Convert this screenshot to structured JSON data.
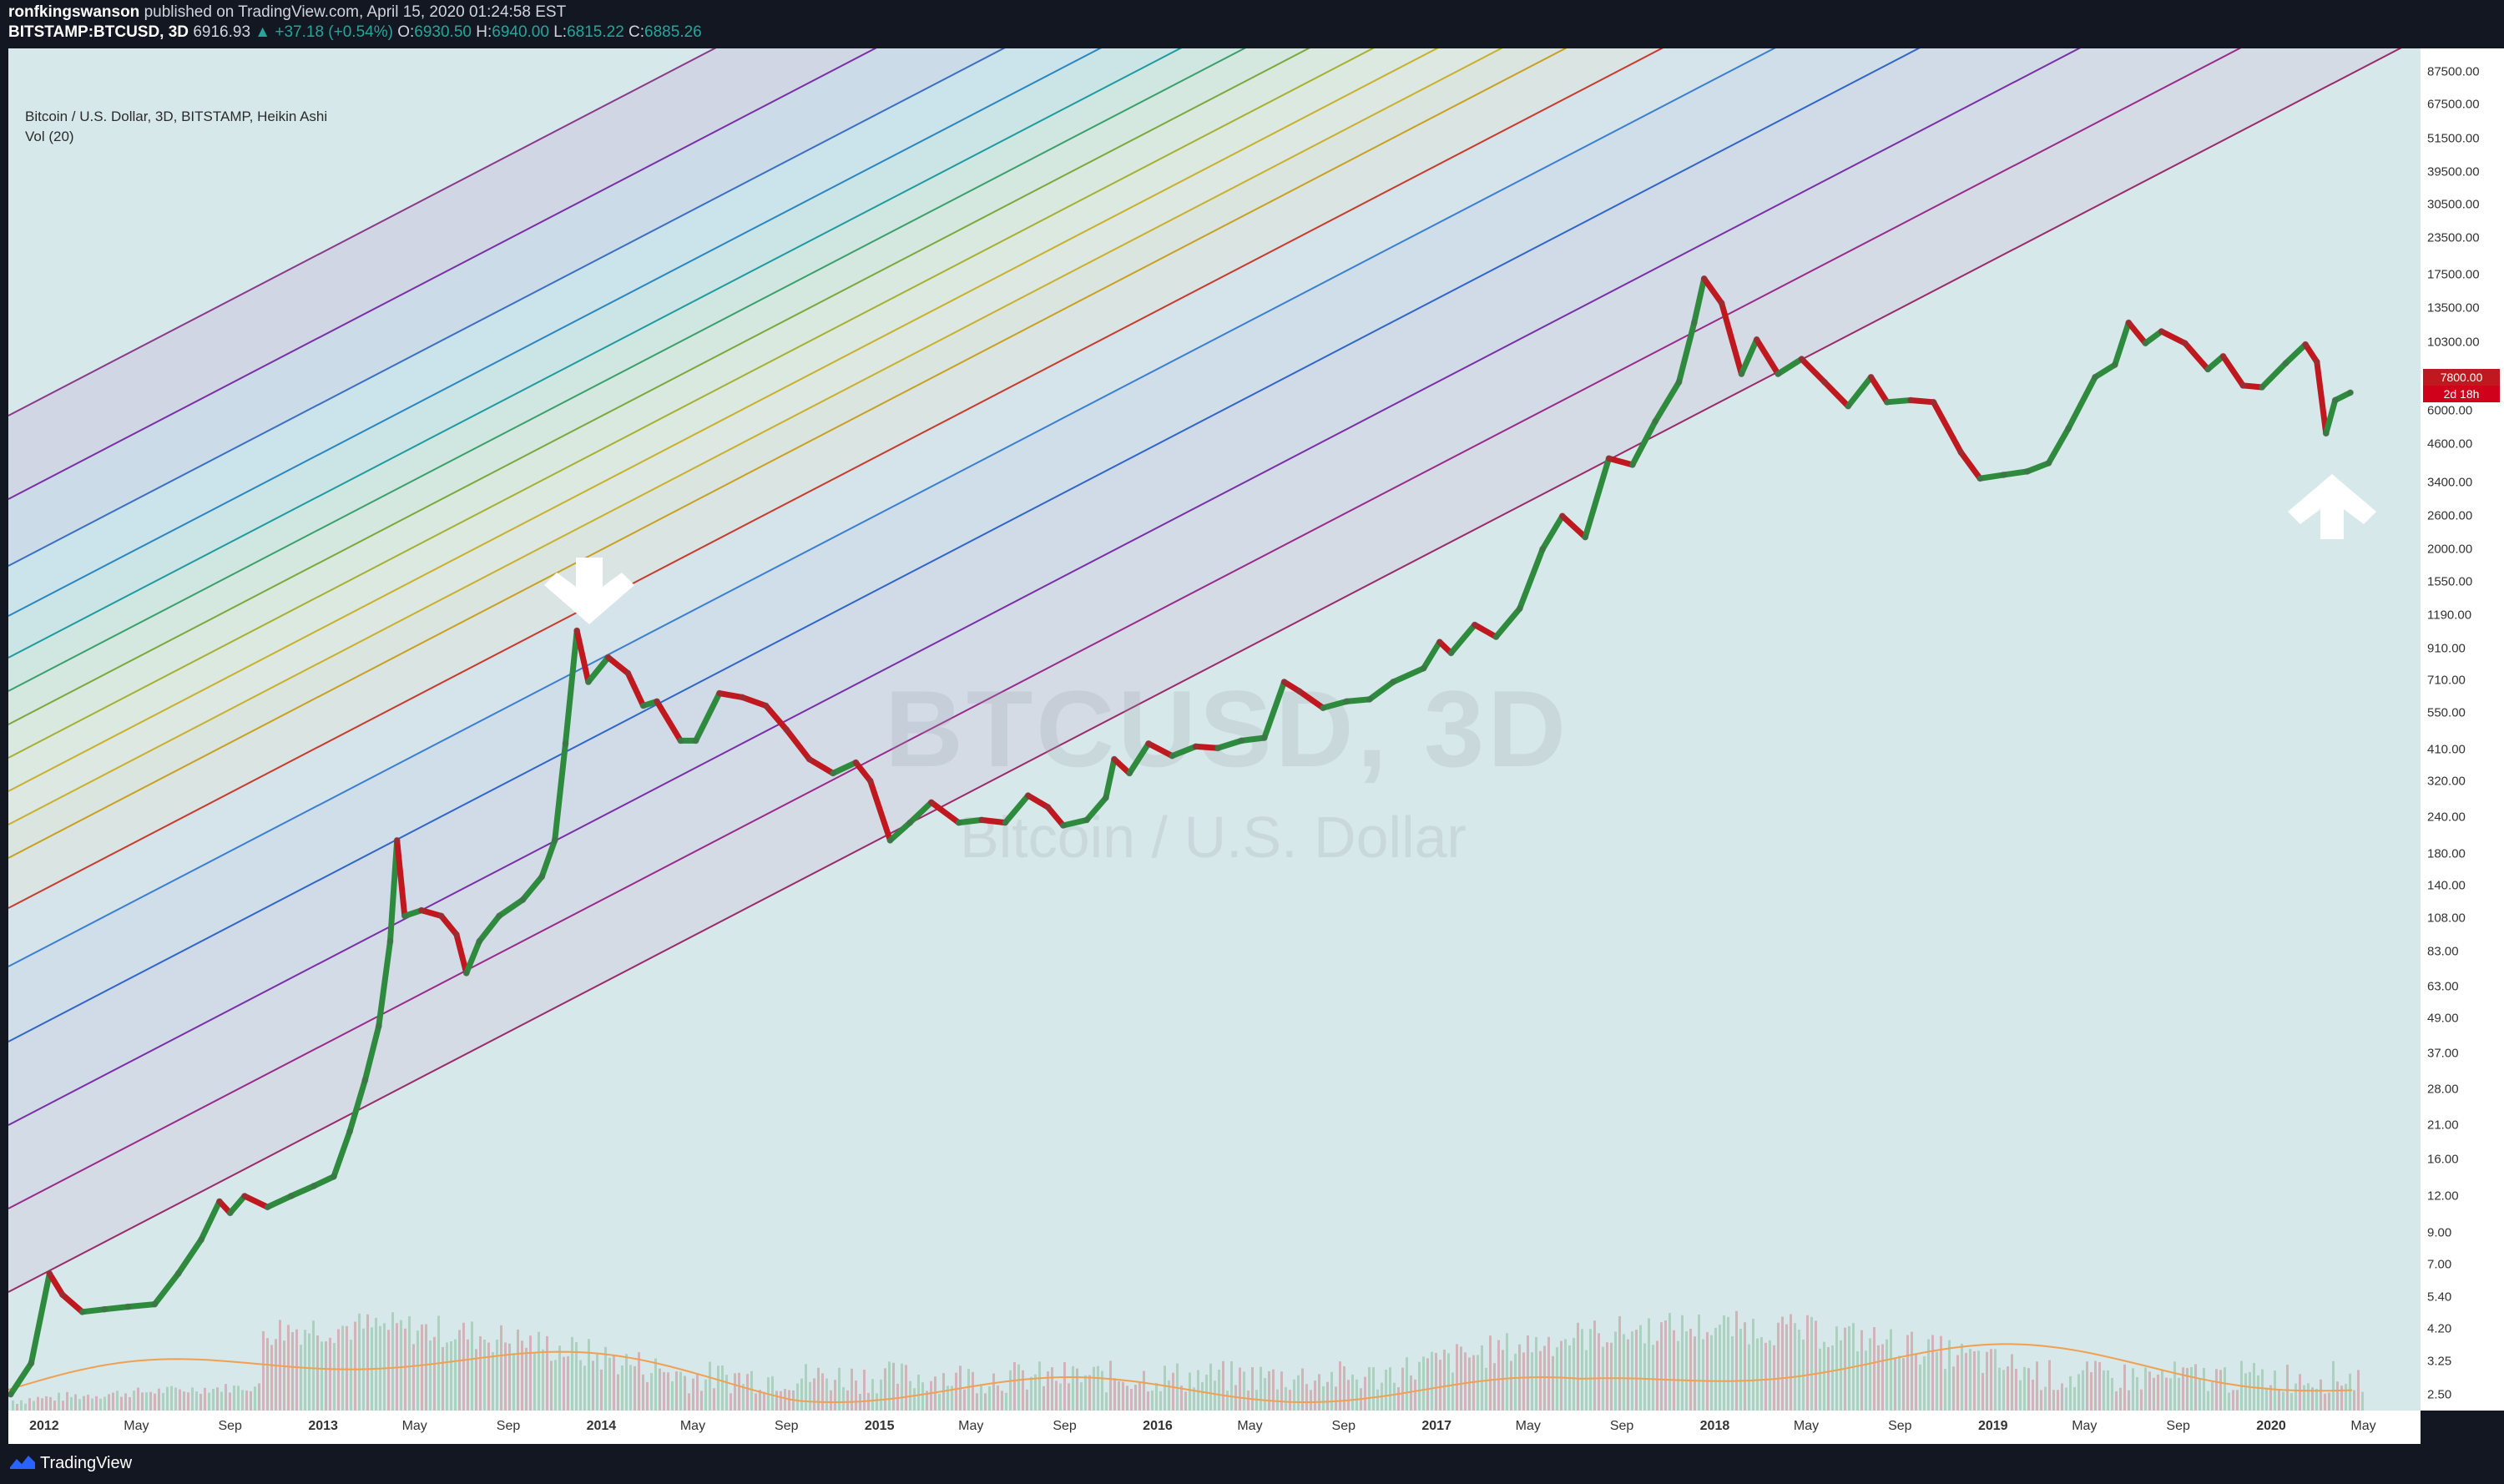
{
  "header": {
    "publisher": "ronfkingswanson",
    "publisher_rest": " published on TradingView.com, April 15, 2020 01:24:58 EST",
    "symbol": "BITSTAMP:BTCUSD, 3D",
    "price": "6916.93",
    "change": "▲ +37.18 (+0.54%)",
    "o_label": "O:",
    "o_val": "6930.50",
    "h_label": "H:",
    "h_val": "6940.00",
    "l_label": "L:",
    "l_val": "6815.22",
    "c_label": "C:",
    "c_val": "6885.26"
  },
  "legend": {
    "title": "Bitcoin / U.S. Dollar, 3D, BITSTAMP, Heikin Ashi",
    "vol": "Vol (20)"
  },
  "watermark": {
    "symbol": "BTCUSD, 3D",
    "name": "Bitcoin / U.S. Dollar"
  },
  "price_tag": {
    "top": "7800.00",
    "bottom": "2d 18h"
  },
  "footer": {
    "brand": "TradingView"
  },
  "colors": {
    "up": "#2e8b3d",
    "down": "#c0181f",
    "background": "#131722",
    "plot": "#d6e8ea"
  },
  "chart_data": {
    "type": "line",
    "title": "Bitcoin / U.S. Dollar, 3D, BITSTAMP, Heikin Ashi",
    "y_scale": "log",
    "ylim": [
      2.2,
      105000
    ],
    "xlim": [
      "2011-11-15",
      "2020-07-15"
    ],
    "y_ticks": [
      "87500.00",
      "67500.00",
      "51500.00",
      "39500.00",
      "30500.00",
      "23500.00",
      "17500.00",
      "13500.00",
      "10300.00",
      "7800.00",
      "6000.00",
      "4600.00",
      "3400.00",
      "2600.00",
      "2000.00",
      "1550.00",
      "1190.00",
      "910.00",
      "710.00",
      "550.00",
      "410.00",
      "320.00",
      "240.00",
      "180.00",
      "140.00",
      "108.00",
      "83.00",
      "63.00",
      "49.00",
      "37.00",
      "28.00",
      "21.00",
      "16.00",
      "12.00",
      "9.00",
      "7.00",
      "5.40",
      "4.20",
      "3.25",
      "2.50"
    ],
    "x_ticks": [
      {
        "label": "2012",
        "date": "2012-01-01",
        "year": true
      },
      {
        "label": "May",
        "date": "2012-05-01"
      },
      {
        "label": "Sep",
        "date": "2012-09-01"
      },
      {
        "label": "2013",
        "date": "2013-01-01",
        "year": true
      },
      {
        "label": "May",
        "date": "2013-05-01"
      },
      {
        "label": "Sep",
        "date": "2013-09-01"
      },
      {
        "label": "2014",
        "date": "2014-01-01",
        "year": true
      },
      {
        "label": "May",
        "date": "2014-05-01"
      },
      {
        "label": "Sep",
        "date": "2014-09-01"
      },
      {
        "label": "2015",
        "date": "2015-01-01",
        "year": true
      },
      {
        "label": "May",
        "date": "2015-05-01"
      },
      {
        "label": "Sep",
        "date": "2015-09-01"
      },
      {
        "label": "2016",
        "date": "2016-01-01",
        "year": true
      },
      {
        "label": "May",
        "date": "2016-05-01"
      },
      {
        "label": "Sep",
        "date": "2016-09-01"
      },
      {
        "label": "2017",
        "date": "2017-01-01",
        "year": true
      },
      {
        "label": "May",
        "date": "2017-05-01"
      },
      {
        "label": "Sep",
        "date": "2017-09-01"
      },
      {
        "label": "2018",
        "date": "2018-01-01",
        "year": true
      },
      {
        "label": "May",
        "date": "2018-05-01"
      },
      {
        "label": "Sep",
        "date": "2018-09-01"
      },
      {
        "label": "2019",
        "date": "2019-01-01",
        "year": true
      },
      {
        "label": "May",
        "date": "2019-05-01"
      },
      {
        "label": "Sep",
        "date": "2019-09-01"
      },
      {
        "label": "2020",
        "date": "2020-01-01",
        "year": true
      },
      {
        "label": "May",
        "date": "2020-05-01"
      }
    ],
    "series": [
      {
        "points": [
          [
            "2011-11-18",
            2.5
          ],
          [
            "2011-12-15",
            3.2
          ],
          [
            "2012-01-08",
            6.5
          ],
          [
            "2012-01-25",
            5.5
          ],
          [
            "2012-02-20",
            4.8
          ],
          [
            "2012-03-20",
            4.9
          ],
          [
            "2012-04-20",
            5.0
          ],
          [
            "2012-05-25",
            5.1
          ],
          [
            "2012-06-25",
            6.5
          ],
          [
            "2012-07-25",
            8.5
          ],
          [
            "2012-08-18",
            11.5
          ],
          [
            "2012-09-01",
            10.5
          ],
          [
            "2012-09-20",
            12.0
          ],
          [
            "2012-10-20",
            11.0
          ],
          [
            "2012-11-20",
            12.0
          ],
          [
            "2012-12-20",
            13.0
          ],
          [
            "2013-01-15",
            14.0
          ],
          [
            "2013-02-05",
            20.0
          ],
          [
            "2013-02-25",
            30.0
          ],
          [
            "2013-03-15",
            46.0
          ],
          [
            "2013-03-30",
            90.0
          ],
          [
            "2013-04-08",
            200.0
          ],
          [
            "2013-04-18",
            110.0
          ],
          [
            "2013-05-10",
            115.0
          ],
          [
            "2013-06-05",
            110.0
          ],
          [
            "2013-06-25",
            95.0
          ],
          [
            "2013-07-08",
            70.0
          ],
          [
            "2013-07-25",
            90.0
          ],
          [
            "2013-08-20",
            110.0
          ],
          [
            "2013-09-20",
            125.0
          ],
          [
            "2013-10-15",
            150.0
          ],
          [
            "2013-11-01",
            200.0
          ],
          [
            "2013-11-15",
            430.0
          ],
          [
            "2013-11-30",
            1050.0
          ],
          [
            "2013-12-15",
            700.0
          ],
          [
            "2014-01-10",
            850.0
          ],
          [
            "2014-02-05",
            750.0
          ],
          [
            "2014-02-25",
            580.0
          ],
          [
            "2014-03-15",
            600.0
          ],
          [
            "2014-04-15",
            440.0
          ],
          [
            "2014-05-05",
            440.0
          ],
          [
            "2014-06-05",
            640.0
          ],
          [
            "2014-07-05",
            620.0
          ],
          [
            "2014-08-05",
            580.0
          ],
          [
            "2014-09-01",
            480.0
          ],
          [
            "2014-10-01",
            380.0
          ],
          [
            "2014-11-01",
            340.0
          ],
          [
            "2014-12-01",
            370.0
          ],
          [
            "2014-12-20",
            320.0
          ],
          [
            "2015-01-15",
            200.0
          ],
          [
            "2015-02-10",
            230.0
          ],
          [
            "2015-03-10",
            270.0
          ],
          [
            "2015-04-15",
            230.0
          ],
          [
            "2015-05-15",
            235.0
          ],
          [
            "2015-06-15",
            230.0
          ],
          [
            "2015-07-15",
            285.0
          ],
          [
            "2015-08-10",
            260.0
          ],
          [
            "2015-08-30",
            225.0
          ],
          [
            "2015-09-30",
            235.0
          ],
          [
            "2015-10-25",
            280.0
          ],
          [
            "2015-11-05",
            380.0
          ],
          [
            "2015-11-25",
            340.0
          ],
          [
            "2015-12-20",
            430.0
          ],
          [
            "2016-01-20",
            390.0
          ],
          [
            "2016-02-20",
            420.0
          ],
          [
            "2016-03-20",
            415.0
          ],
          [
            "2016-04-20",
            440.0
          ],
          [
            "2016-05-20",
            450.0
          ],
          [
            "2016-06-15",
            700.0
          ],
          [
            "2016-07-05",
            650.0
          ],
          [
            "2016-08-05",
            570.0
          ],
          [
            "2016-09-05",
            600.0
          ],
          [
            "2016-10-05",
            610.0
          ],
          [
            "2016-11-05",
            700.0
          ],
          [
            "2016-12-15",
            780.0
          ],
          [
            "2017-01-05",
            960.0
          ],
          [
            "2017-01-20",
            880.0
          ],
          [
            "2017-02-20",
            1100.0
          ],
          [
            "2017-03-20",
            1000.0
          ],
          [
            "2017-04-20",
            1250.0
          ],
          [
            "2017-05-20",
            2000.0
          ],
          [
            "2017-06-15",
            2600.0
          ],
          [
            "2017-07-15",
            2200.0
          ],
          [
            "2017-08-15",
            4100.0
          ],
          [
            "2017-09-15",
            3900.0
          ],
          [
            "2017-10-15",
            5500.0
          ],
          [
            "2017-11-15",
            7500.0
          ],
          [
            "2017-12-05",
            12000.0
          ],
          [
            "2017-12-18",
            17000.0
          ],
          [
            "2018-01-10",
            14000.0
          ],
          [
            "2018-02-05",
            8000.0
          ],
          [
            "2018-02-25",
            10500.0
          ],
          [
            "2018-03-25",
            8000.0
          ],
          [
            "2018-04-25",
            9000.0
          ],
          [
            "2018-05-25",
            7500.0
          ],
          [
            "2018-06-25",
            6200.0
          ],
          [
            "2018-07-25",
            7800.0
          ],
          [
            "2018-08-15",
            6400.0
          ],
          [
            "2018-09-15",
            6500.0
          ],
          [
            "2018-10-15",
            6400.0
          ],
          [
            "2018-11-20",
            4300.0
          ],
          [
            "2018-12-15",
            3500.0
          ],
          [
            "2019-01-15",
            3600.0
          ],
          [
            "2019-02-15",
            3700.0
          ],
          [
            "2019-03-15",
            3950.0
          ],
          [
            "2019-04-10",
            5200.0
          ],
          [
            "2019-05-15",
            7800.0
          ],
          [
            "2019-06-10",
            8600.0
          ],
          [
            "2019-06-28",
            12000.0
          ],
          [
            "2019-07-20",
            10200.0
          ],
          [
            "2019-08-10",
            11200.0
          ],
          [
            "2019-09-10",
            10200.0
          ],
          [
            "2019-10-10",
            8300.0
          ],
          [
            "2019-10-30",
            9200.0
          ],
          [
            "2019-11-25",
            7300.0
          ],
          [
            "2019-12-20",
            7200.0
          ],
          [
            "2020-01-20",
            8700.0
          ],
          [
            "2020-02-15",
            10100.0
          ],
          [
            "2020-03-01",
            8800.0
          ],
          [
            "2020-03-13",
            5000.0
          ],
          [
            "2020-03-25",
            6500.0
          ],
          [
            "2020-04-14",
            6900.0
          ]
        ]
      }
    ]
  }
}
